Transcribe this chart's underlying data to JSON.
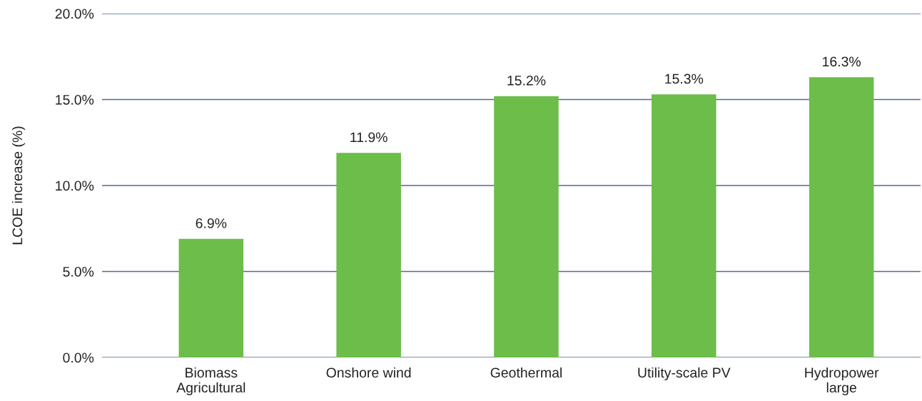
{
  "chart_data": {
    "type": "bar",
    "ylabel": "LCOE increase (%)",
    "categories": [
      "Biomass\nAgricultural",
      "Onshore wind",
      "Geothermal",
      "Utility-scale PV",
      "Hydropower\nlarge"
    ],
    "values": [
      6.9,
      11.9,
      15.2,
      15.3,
      16.3
    ],
    "value_labels": [
      "6.9%",
      "11.9%",
      "15.2%",
      "15.3%",
      "16.3%"
    ],
    "color": "#6cbd4a",
    "ylim": [
      0,
      20
    ],
    "yticks": [
      {
        "value": 0,
        "label": "0.0%"
      },
      {
        "value": 5,
        "label": "5.0%"
      },
      {
        "value": 10,
        "label": "10.0%"
      },
      {
        "value": 15,
        "label": "15.0%"
      },
      {
        "value": 20,
        "label": "20.0%"
      }
    ],
    "grid": "y"
  }
}
